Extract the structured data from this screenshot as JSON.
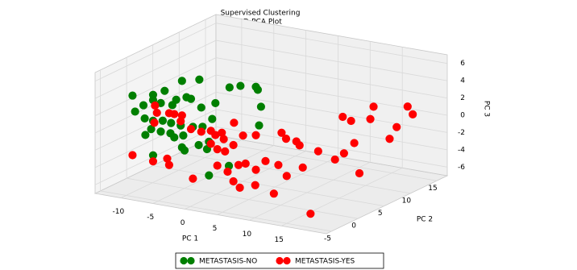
{
  "chart_data": {
    "type": "scatter3d",
    "title": "Supervised Clustering",
    "subtitle": "3D-PCA Plot",
    "xlabel": "PC 1",
    "ylabel": "PC 2",
    "zlabel": "PC 3",
    "xlim": [
      -14,
      22
    ],
    "ylim": [
      -6,
      17
    ],
    "zlim": [
      -7,
      7
    ],
    "xticks": [
      -10,
      -5,
      0,
      5,
      10,
      15
    ],
    "yticks": [
      -5,
      0,
      5,
      10,
      15
    ],
    "zticks": [
      -6,
      -4,
      -2,
      0,
      2,
      4,
      6
    ],
    "grid": true,
    "legend": "bottom",
    "series": [
      {
        "name": "METASTASIS-NO",
        "color": "#007f00",
        "x": [
          -13.9,
          -10.7,
          -8.9,
          -6.2,
          -3.5,
          -13.5,
          -12.2,
          -10.7,
          -9.5,
          -7.7,
          -7.1,
          -5.5,
          -4.8,
          -3.2,
          -1.0,
          1.2,
          2.9,
          5.3,
          5.6,
          6.1,
          -12.0,
          -10.7,
          -9.2,
          -7.9,
          -6.4,
          -4.5,
          -3.0,
          -1.5,
          -11.9,
          -11.0,
          -9.5,
          -8.0,
          -7.4,
          -6.0,
          -10.7,
          -6.2,
          -5.8,
          -3.6,
          -2.3,
          -2.0,
          1.1,
          5.8,
          -2.0
        ],
        "y": [
          1,
          1,
          1,
          1,
          1,
          1,
          1,
          1,
          1,
          1,
          1,
          1,
          1,
          1,
          1,
          1,
          1,
          1,
          1,
          1,
          1,
          1,
          1,
          1,
          1,
          1,
          1,
          1,
          1,
          1,
          1,
          1,
          1,
          1,
          1,
          1,
          1,
          1,
          1,
          1,
          1,
          1,
          1
        ],
        "z": [
          2.3,
          2.8,
          3.5,
          5.0,
          5.5,
          0.5,
          1.4,
          2.2,
          2.0,
          2.0,
          2.7,
          3.2,
          3.1,
          2.3,
          3.1,
          5.2,
          5.6,
          5.8,
          5.5,
          3.6,
          -0.1,
          -0.2,
          0.0,
          -0.1,
          -0.2,
          -0.1,
          0.1,
          1.2,
          -2.0,
          -1.2,
          -1.3,
          -1.3,
          -1.7,
          -1.3,
          -4.2,
          -2.7,
          -3.0,
          -2.1,
          -2.4,
          -1.5,
          -3.9,
          1.4,
          -5.4
        ]
      },
      {
        "name": "METASTASIS-YES",
        "color": "#ff0000",
        "x": [
          -10.4,
          -10.1,
          -10.5,
          -8.2,
          -7.4,
          -6.2,
          -6.4,
          -4.8,
          -3.2,
          -1.7,
          -1.0,
          0.0,
          1.9,
          0.3,
          -1.7,
          -0.7,
          0.5,
          1.8,
          3.3,
          5.3,
          9.3,
          10.0,
          11.6,
          12.1,
          15.0,
          -13.9,
          -8.5,
          -10.7,
          -8.2,
          -4.5,
          -0.7,
          0.9,
          2.6,
          3.7,
          5.3,
          6.8,
          8.8,
          10.1,
          12.6,
          1.8,
          2.8,
          5.2,
          8.1,
          17.9,
          7.8,
          9.2,
          10.8,
          9.0,
          10.3,
          13.8,
          13.3,
          17.4,
          19.1,
          19.9,
          16.3,
          11.6
        ],
        "y": [
          1,
          1,
          1,
          1,
          1,
          1,
          1,
          1,
          1,
          1,
          1,
          1,
          1,
          1,
          1,
          1,
          1,
          1,
          1,
          1,
          1,
          1,
          1,
          1,
          1,
          1,
          1,
          1,
          1,
          1,
          1,
          1,
          1,
          1,
          1,
          1,
          1,
          1,
          1,
          1,
          1,
          1,
          1,
          -4,
          13,
          13,
          13,
          13,
          13,
          13,
          13,
          13,
          13,
          13,
          13,
          13
        ],
        "z": [
          1.6,
          0.8,
          -0.4,
          1.0,
          1.0,
          1.0,
          0.3,
          -0.4,
          -0.5,
          -0.2,
          -0.6,
          -0.2,
          1.2,
          -0.9,
          -1.7,
          -2.2,
          -2.3,
          -1.4,
          -0.1,
          0.2,
          1.0,
          0.4,
          0.3,
          -0.1,
          -0.4,
          -4.6,
          -4.3,
          -4.9,
          -5.0,
          -6.1,
          -4.1,
          -4.6,
          -3.6,
          -3.3,
          -3.8,
          -2.6,
          -2.8,
          -3.9,
          -2.6,
          -5.6,
          -6.2,
          -5.6,
          -6.2,
          -5.8,
          -5.8,
          -4.9,
          -3.5,
          -0.7,
          -1.0,
          1.1,
          -0.4,
          -0.8,
          1.8,
          1.0,
          -2.3,
          -6.9
        ]
      }
    ]
  }
}
